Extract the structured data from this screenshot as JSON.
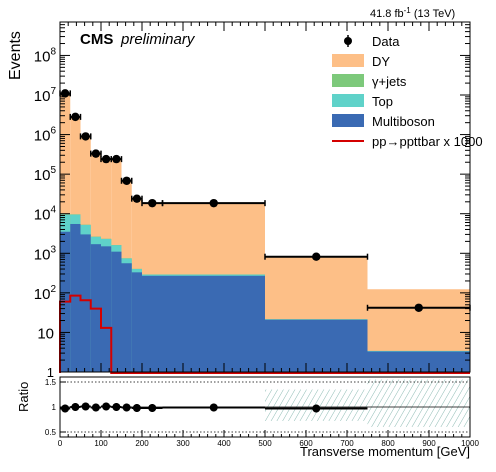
{
  "chart_data": {
    "type": "bar",
    "lumi_label": "41.8 fb",
    "lumi_exp": "-1",
    "lumi_energy": "(13 TeV)",
    "cms_label": "CMS",
    "cms_sub": "preliminary",
    "ylabel": "Events",
    "xlabel": "Transverse momentum [GeV]",
    "ratio_ylabel": "Ratio",
    "yscale": "log",
    "ylim": [
      1,
      700000000
    ],
    "xlim": [
      0,
      1000
    ],
    "ratio_ylim": [
      0.4,
      1.6
    ],
    "bin_edges": [
      0,
      25,
      50,
      75,
      100,
      125,
      150,
      175,
      200,
      250,
      500,
      750,
      1000
    ],
    "stack": [
      {
        "name": "Multiboson",
        "color": "#3a6ab3",
        "values": [
          3500,
          5500,
          3000,
          1700,
          1500,
          1100,
          560,
          330,
          270,
          270,
          21,
          3.3
        ]
      },
      {
        "name": "Top",
        "color": "#5fd2c9",
        "values": [
          6000,
          4000,
          2200,
          900,
          800,
          500,
          180,
          70,
          20,
          20,
          0.5,
          0.1
        ]
      },
      {
        "name": "γ+jets",
        "color": "#7dc97b",
        "values": [
          200,
          150,
          80,
          40,
          30,
          20,
          10,
          5,
          2,
          2,
          0.05,
          0.01
        ]
      },
      {
        "name": "DY",
        "color": "#fdbf87",
        "values": [
          10000000,
          2800000,
          900000,
          330000,
          245000,
          240000,
          69000,
          24000,
          18000,
          18000,
          820,
          120
        ]
      }
    ],
    "signal": {
      "name": "pp→ppttbar x 1000",
      "color": "#d40000",
      "values": [
        60,
        85,
        65,
        40,
        13,
        0,
        0,
        0,
        0,
        0,
        0,
        0
      ]
    },
    "data": {
      "name": "Data",
      "x": [
        12.5,
        37.5,
        62.5,
        87.5,
        112.5,
        137.5,
        162.5,
        187.5,
        225,
        375,
        625,
        875
      ],
      "y": [
        11000000,
        2800000,
        900000,
        330000,
        240000,
        240000,
        68000,
        24000,
        18500,
        18500,
        820,
        42
      ]
    },
    "legend_order": [
      "Data",
      "DY",
      "γ+jets",
      "Top",
      "Multiboson",
      "pp→ppttbar x 1000"
    ],
    "legend_position": "top-right",
    "main_y_ticks": [
      {
        "v": 10,
        "label": "10"
      },
      {
        "v": 100,
        "label": "10",
        "exp": "2"
      },
      {
        "v": 1000,
        "label": "10",
        "exp": "3"
      },
      {
        "v": 10000,
        "label": "10",
        "exp": "4"
      },
      {
        "v": 100000,
        "label": "10",
        "exp": "5"
      },
      {
        "v": 1000000,
        "label": "10",
        "exp": "6"
      },
      {
        "v": 10000000,
        "label": "10",
        "exp": "7"
      },
      {
        "v": 100000000,
        "label": "10",
        "exp": "8"
      }
    ],
    "main_y_bottom_label": "1",
    "ratio_y_ticks": [
      {
        "v": 0.5,
        "label": "0.5"
      },
      {
        "v": 1,
        "label": "1"
      },
      {
        "v": 1.5,
        "label": "1.5"
      }
    ],
    "x_ticks": [
      0,
      100,
      200,
      300,
      400,
      500,
      600,
      700,
      800,
      900,
      1000
    ],
    "ratio": {
      "x": [
        12.5,
        37.5,
        62.5,
        87.5,
        112.5,
        137.5,
        162.5,
        187.5,
        225,
        375,
        625
      ],
      "y": [
        0.97,
        1.0,
        1.01,
        0.99,
        1.01,
        1.0,
        0.99,
        0.98,
        0.98,
        0.99,
        0.97
      ],
      "uncertainty_band_from": 500
    }
  }
}
